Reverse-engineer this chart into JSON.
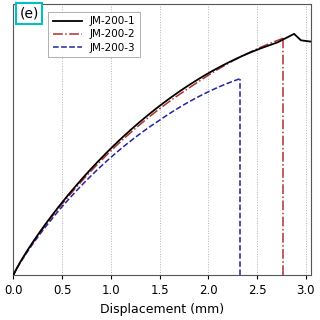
{
  "title": "(e)",
  "xlabel": "Displacement (mm)",
  "xlim": [
    0.0,
    3.05
  ],
  "ylim": [
    0.0,
    1.05
  ],
  "xticks": [
    0.0,
    0.5,
    1.0,
    1.5,
    2.0,
    2.5,
    3.0
  ],
  "grid_color": "#aaaaaa",
  "bg_color": "#ffffff",
  "line1_color": "#000000",
  "line2_color": "#b03030",
  "line3_color": "#2222aa",
  "vline_blue_x": 2.33,
  "vline_red_x": 2.77,
  "legend_labels": [
    "JM-200-1",
    "JM-200-2",
    "JM-200-3"
  ],
  "label_box_color": "#00c0c0"
}
